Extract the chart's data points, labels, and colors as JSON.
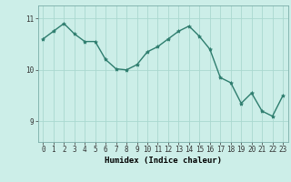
{
  "x": [
    0,
    1,
    2,
    3,
    4,
    5,
    6,
    7,
    8,
    9,
    10,
    11,
    12,
    13,
    14,
    15,
    16,
    17,
    18,
    19,
    20,
    21,
    22,
    23
  ],
  "y": [
    10.6,
    10.75,
    10.9,
    10.7,
    10.55,
    10.55,
    10.2,
    10.02,
    10.0,
    10.1,
    10.35,
    10.45,
    10.6,
    10.75,
    10.85,
    10.65,
    10.4,
    9.85,
    9.75,
    9.35,
    9.55,
    9.2,
    9.1,
    9.5
  ],
  "line_color": "#2e7d6e",
  "marker": "*",
  "marker_size": 3,
  "bg_color": "#cceee8",
  "grid_color": "#aad8d0",
  "xlabel": "Humidex (Indice chaleur)",
  "ylim": [
    8.6,
    11.25
  ],
  "xlim": [
    -0.5,
    23.5
  ],
  "yticks": [
    9,
    10,
    11
  ],
  "xticks": [
    0,
    1,
    2,
    3,
    4,
    5,
    6,
    7,
    8,
    9,
    10,
    11,
    12,
    13,
    14,
    15,
    16,
    17,
    18,
    19,
    20,
    21,
    22,
    23
  ],
  "xlabel_fontsize": 6.5,
  "tick_fontsize": 5.5,
  "line_width": 1.0
}
